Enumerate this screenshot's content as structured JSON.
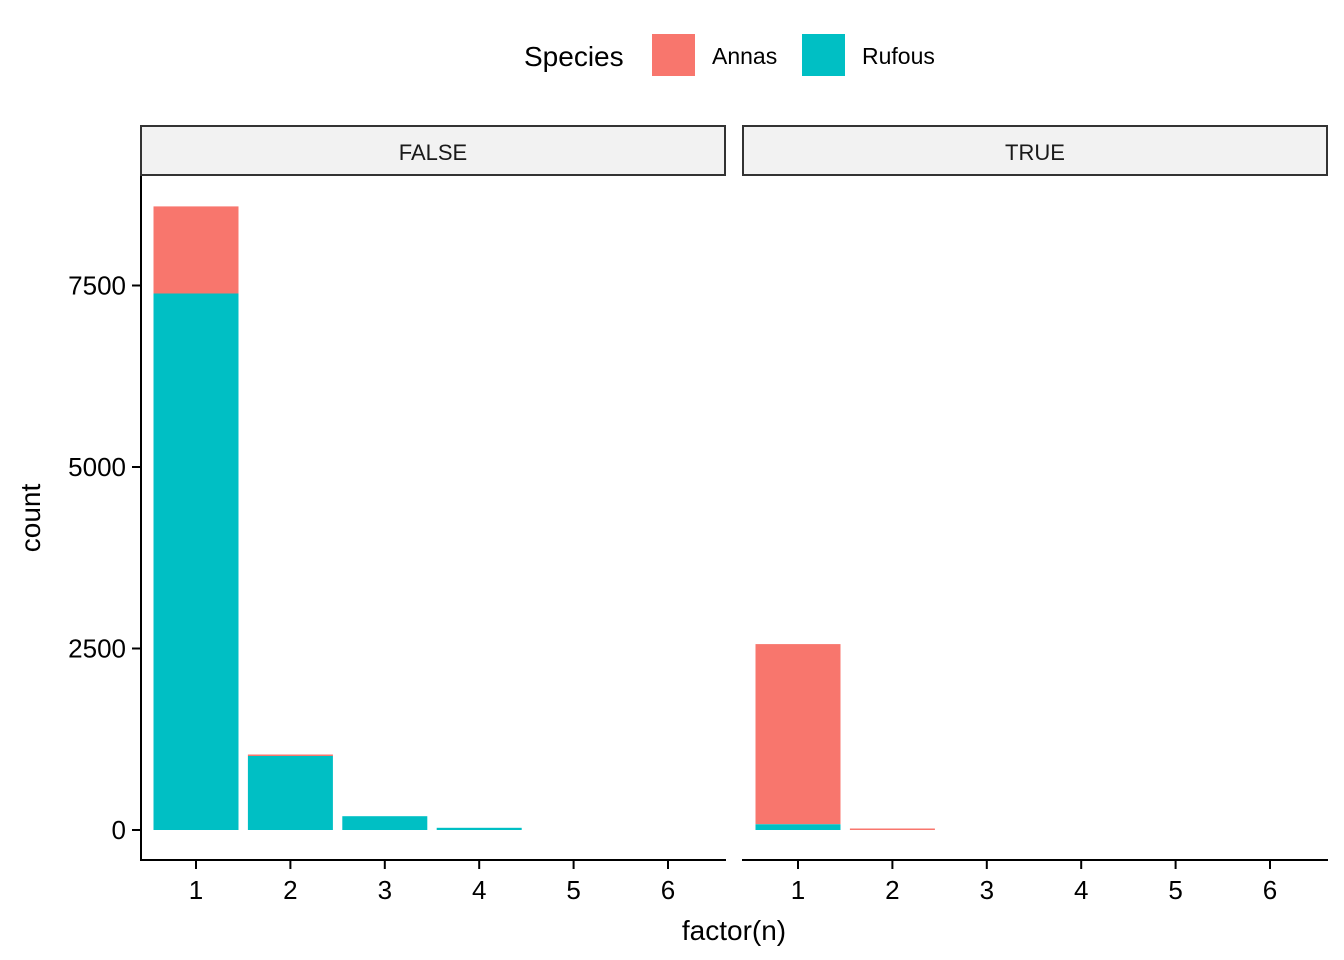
{
  "chart_data": {
    "type": "bar",
    "stacked": true,
    "facet_variable": "",
    "facets": [
      "FALSE",
      "TRUE"
    ],
    "categories": [
      "1",
      "2",
      "3",
      "4",
      "5",
      "6"
    ],
    "xlabel": "factor(n)",
    "ylabel": "count",
    "ylim": [
      0,
      9000
    ],
    "yticks": [
      0,
      2500,
      5000,
      7500
    ],
    "ytick_labels": [
      "0",
      "2500",
      "5000",
      "7500"
    ],
    "grid": false,
    "legend": {
      "title": "Species",
      "position": "top",
      "entries": [
        {
          "name": "Annas",
          "color": "#F8766D"
        },
        {
          "name": "Rufous",
          "color": "#00BFC4"
        }
      ]
    },
    "panels": [
      {
        "facet": "FALSE",
        "series": [
          {
            "name": "Annas",
            "values": [
              1200,
              20,
              0,
              0,
              0,
              0
            ]
          },
          {
            "name": "Rufous",
            "values": [
              7390,
              1020,
              190,
              30,
              0,
              0
            ]
          }
        ]
      },
      {
        "facet": "TRUE",
        "series": [
          {
            "name": "Annas",
            "values": [
              2480,
              20,
              0,
              0,
              0,
              0
            ]
          },
          {
            "name": "Rufous",
            "values": [
              80,
              0,
              0,
              0,
              0,
              0
            ]
          }
        ]
      }
    ]
  }
}
